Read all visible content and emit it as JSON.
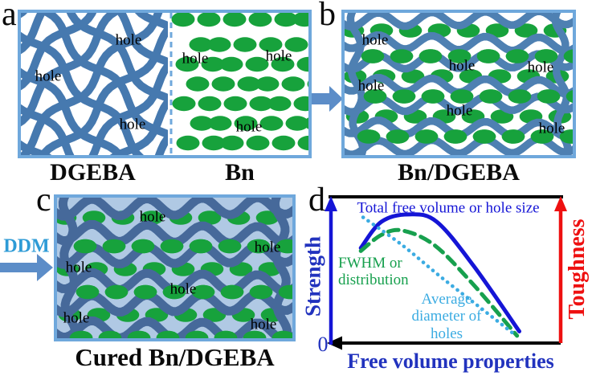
{
  "panel_a": {
    "letter": "a",
    "caption_left": "DGEBA",
    "caption_right": "Bn"
  },
  "panel_b": {
    "letter": "b",
    "caption": "Bn/DGEBA"
  },
  "panel_c": {
    "letter": "c",
    "caption": "Cured Bn/DGEBA",
    "ddm_label": "DDM"
  },
  "panel_d": {
    "letter": "d"
  },
  "labels": {
    "hole": "hole"
  },
  "colors": {
    "figure_border": "#6FA8DC",
    "network_blue": "#4679AF",
    "strand_blue": "#4E80B2",
    "cured_strand_blue": "#46699A",
    "green": "#17A23C",
    "cured_bg": "#B0C9E4",
    "arrow": "#5C8DC8",
    "ddm_text": "#2E9BD6",
    "axis_blue": "#1515D6",
    "axis_red": "#EE1010",
    "text_blue": "#2233BE",
    "axis_black": "#000000"
  },
  "chart_data": {
    "type": "line",
    "xlabel": "Free volume properties",
    "ylabel_left": "Strength",
    "ylabel_right": "Toughness",
    "origin_label": "0",
    "x_axis_range": [
      0,
      100
    ],
    "y_axis_range": [
      0,
      100
    ],
    "grid": false,
    "units": "arbitrary (schematic, no ticks)",
    "series": [
      {
        "name": "Total free volume or hole size",
        "style": "solid",
        "color": "#1515D6",
        "x": [
          13,
          22,
          34,
          46,
          62,
          82
        ],
        "y": [
          65,
          83,
          88,
          83,
          53,
          8
        ]
      },
      {
        "name": "FWHM or distribution",
        "style": "dashed",
        "color": "#17A04E",
        "x": [
          13,
          22,
          31,
          45,
          62,
          81
        ],
        "y": [
          63,
          74,
          77,
          67,
          40,
          5
        ]
      },
      {
        "name": "Average diameter of holes",
        "style": "dotted",
        "color": "#3CACE2",
        "x": [
          14,
          31,
          48,
          66,
          79
        ],
        "y": [
          86,
          67,
          45,
          23,
          7
        ]
      }
    ]
  }
}
